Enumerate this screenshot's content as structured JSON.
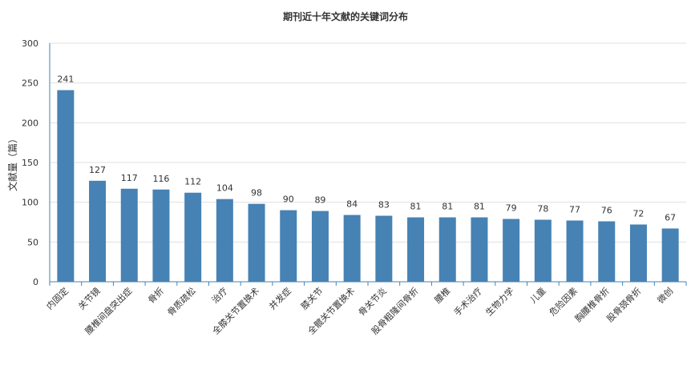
{
  "chart_data": {
    "type": "bar",
    "title": "期刊近十年文献的关键词分布",
    "xlabel": "",
    "ylabel": "文献量（篇）",
    "ylim": [
      0,
      300
    ],
    "yticks": [
      0,
      50,
      100,
      150,
      200,
      250,
      300
    ],
    "grid": true,
    "bar_color": "#4682b4",
    "categories": [
      "内固定",
      "关节镜",
      "腰椎间盘突出症",
      "骨折",
      "骨质疏松",
      "治疗",
      "全膝关节置换术",
      "并发症",
      "膝关节",
      "全髋关节置换术",
      "骨关节炎",
      "股骨粗隆间骨折",
      "腰椎",
      "手术治疗",
      "生物力学",
      "儿童",
      "危险因素",
      "胸腰椎骨折",
      "股骨颈骨折",
      "微创"
    ],
    "values": [
      241,
      127,
      117,
      116,
      112,
      104,
      98,
      90,
      89,
      84,
      83,
      81,
      81,
      81,
      79,
      78,
      77,
      76,
      72,
      67
    ]
  }
}
